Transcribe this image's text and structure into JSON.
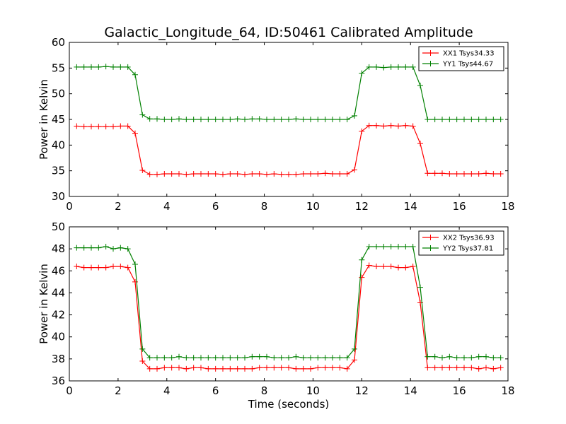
{
  "chart_data": [
    {
      "type": "line",
      "title": "Galactic_Longitude_64, ID:50461 Calibrated Amplitude",
      "xlabel": "",
      "ylabel": "Power in Kelvin",
      "xlim": [
        0,
        18
      ],
      "ylim": [
        30,
        60
      ],
      "xticks": [
        0,
        2,
        4,
        6,
        8,
        10,
        12,
        14,
        16,
        18
      ],
      "yticks": [
        30,
        35,
        40,
        45,
        50,
        55,
        60
      ],
      "grid": false,
      "legend_position": "top-right",
      "x": [
        0.3,
        0.6,
        0.9,
        1.2,
        1.5,
        1.8,
        2.1,
        2.4,
        2.7,
        3.0,
        3.3,
        3.6,
        3.9,
        4.2,
        4.5,
        4.8,
        5.1,
        5.4,
        5.7,
        6.0,
        6.3,
        6.6,
        6.9,
        7.2,
        7.5,
        7.8,
        8.1,
        8.4,
        8.7,
        9.0,
        9.3,
        9.6,
        9.9,
        10.2,
        10.5,
        10.8,
        11.1,
        11.4,
        11.7,
        12.0,
        12.3,
        12.6,
        12.9,
        13.2,
        13.5,
        13.8,
        14.1,
        14.4,
        14.7,
        15.0,
        15.3,
        15.6,
        15.9,
        16.2,
        16.5,
        16.8,
        17.1,
        17.4,
        17.7
      ],
      "series": [
        {
          "name": "XX1 Tsys34.33",
          "color": "#ff0000",
          "values": [
            43.7,
            43.6,
            43.6,
            43.6,
            43.6,
            43.6,
            43.7,
            43.7,
            42.3,
            35.1,
            34.3,
            34.3,
            34.4,
            34.4,
            34.4,
            34.3,
            34.4,
            34.4,
            34.4,
            34.4,
            34.3,
            34.4,
            34.4,
            34.3,
            34.4,
            34.4,
            34.3,
            34.4,
            34.3,
            34.3,
            34.3,
            34.4,
            34.4,
            34.4,
            34.5,
            34.4,
            34.4,
            34.4,
            35.2,
            42.7,
            43.8,
            43.8,
            43.7,
            43.8,
            43.7,
            43.8,
            43.7,
            40.3,
            34.5,
            34.5,
            34.5,
            34.4,
            34.4,
            34.4,
            34.4,
            34.4,
            34.5,
            34.4,
            34.4
          ]
        },
        {
          "name": "YY1 Tsys44.67",
          "color": "#008000",
          "values": [
            55.2,
            55.2,
            55.2,
            55.2,
            55.3,
            55.2,
            55.2,
            55.2,
            53.7,
            45.9,
            45.1,
            45.1,
            45.0,
            45.0,
            45.1,
            45.0,
            45.0,
            45.0,
            45.0,
            45.0,
            45.0,
            45.0,
            45.1,
            45.0,
            45.1,
            45.1,
            45.0,
            45.0,
            45.0,
            45.0,
            45.1,
            45.0,
            45.0,
            45.0,
            45.0,
            45.0,
            45.0,
            45.0,
            45.7,
            54.0,
            55.2,
            55.2,
            55.1,
            55.2,
            55.2,
            55.2,
            55.2,
            51.6,
            45.0,
            45.0,
            45.0,
            45.0,
            45.0,
            45.0,
            45.0,
            45.0,
            45.0,
            45.0,
            45.0
          ]
        }
      ]
    },
    {
      "type": "line",
      "title": "",
      "xlabel": "Time (seconds)",
      "ylabel": "Power in Kelvin",
      "xlim": [
        0,
        18
      ],
      "ylim": [
        36,
        50
      ],
      "xticks": [
        0,
        2,
        4,
        6,
        8,
        10,
        12,
        14,
        16,
        18
      ],
      "yticks": [
        36,
        38,
        40,
        42,
        44,
        46,
        48,
        50
      ],
      "grid": false,
      "legend_position": "top-right",
      "x": [
        0.3,
        0.6,
        0.9,
        1.2,
        1.5,
        1.8,
        2.1,
        2.4,
        2.7,
        3.0,
        3.3,
        3.6,
        3.9,
        4.2,
        4.5,
        4.8,
        5.1,
        5.4,
        5.7,
        6.0,
        6.3,
        6.6,
        6.9,
        7.2,
        7.5,
        7.8,
        8.1,
        8.4,
        8.7,
        9.0,
        9.3,
        9.6,
        9.9,
        10.2,
        10.5,
        10.8,
        11.1,
        11.4,
        11.7,
        12.0,
        12.3,
        12.6,
        12.9,
        13.2,
        13.5,
        13.8,
        14.1,
        14.4,
        14.7,
        15.0,
        15.3,
        15.6,
        15.9,
        16.2,
        16.5,
        16.8,
        17.1,
        17.4,
        17.7
      ],
      "series": [
        {
          "name": "XX2 Tsys36.93",
          "color": "#ff0000",
          "values": [
            46.4,
            46.3,
            46.3,
            46.3,
            46.3,
            46.4,
            46.4,
            46.3,
            45.0,
            37.8,
            37.1,
            37.1,
            37.2,
            37.2,
            37.2,
            37.1,
            37.2,
            37.2,
            37.1,
            37.1,
            37.1,
            37.1,
            37.1,
            37.1,
            37.1,
            37.2,
            37.2,
            37.2,
            37.2,
            37.2,
            37.1,
            37.1,
            37.1,
            37.2,
            37.2,
            37.2,
            37.2,
            37.1,
            37.9,
            45.4,
            46.5,
            46.4,
            46.4,
            46.4,
            46.3,
            46.3,
            46.4,
            43.1,
            37.2,
            37.2,
            37.2,
            37.2,
            37.2,
            37.2,
            37.2,
            37.1,
            37.2,
            37.1,
            37.2
          ]
        },
        {
          "name": "YY2 Tsys37.81",
          "color": "#008000",
          "values": [
            48.1,
            48.1,
            48.1,
            48.1,
            48.2,
            48.0,
            48.1,
            48.0,
            46.6,
            38.9,
            38.1,
            38.1,
            38.1,
            38.1,
            38.2,
            38.1,
            38.1,
            38.1,
            38.1,
            38.1,
            38.1,
            38.1,
            38.1,
            38.1,
            38.2,
            38.2,
            38.2,
            38.1,
            38.1,
            38.1,
            38.2,
            38.1,
            38.1,
            38.1,
            38.1,
            38.1,
            38.1,
            38.1,
            38.9,
            47.0,
            48.2,
            48.2,
            48.2,
            48.2,
            48.2,
            48.2,
            48.2,
            44.5,
            38.2,
            38.2,
            38.1,
            38.2,
            38.1,
            38.1,
            38.1,
            38.2,
            38.2,
            38.1,
            38.1
          ]
        }
      ]
    }
  ]
}
